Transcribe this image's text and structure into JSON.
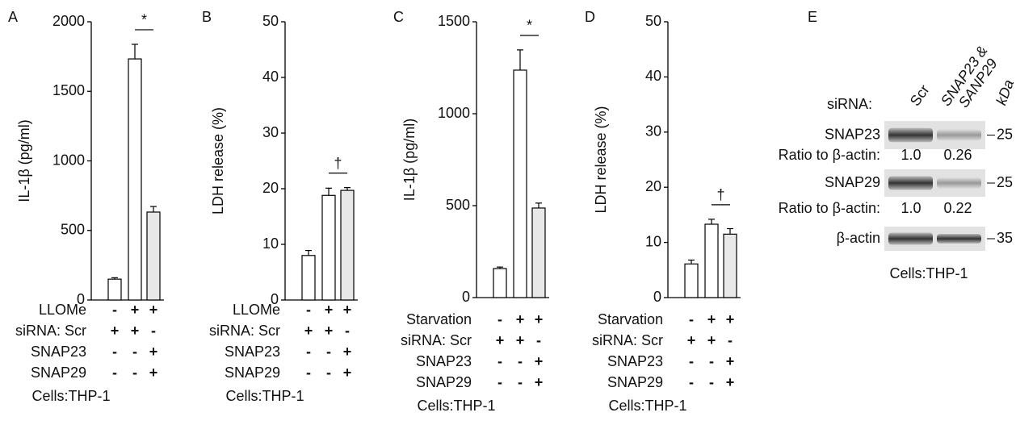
{
  "chart_data": [
    {
      "type": "bar",
      "panel": "A",
      "ylabel": "IL-1β  (pg/ml)",
      "ylim": [
        0,
        2000
      ],
      "yticks": [
        0,
        500,
        1000,
        1500,
        2000
      ],
      "values": [
        150,
        1733,
        632
      ],
      "errors": [
        10,
        105,
        40
      ],
      "colors": [
        "#ffffff",
        "#ffffff",
        "#e8e8e8"
      ],
      "annotation": "*",
      "conditions": [
        {
          "label": "LLOMe",
          "marks": [
            "-",
            "+",
            "+"
          ]
        },
        {
          "label": "siRNA:  Scr",
          "marks": [
            "+",
            "+",
            "-"
          ]
        },
        {
          "label": "SNAP23",
          "marks": [
            "-",
            "-",
            "+"
          ]
        },
        {
          "label": "SNAP29",
          "marks": [
            "-",
            "-",
            "+"
          ]
        }
      ],
      "footer": "Cells:THP-1"
    },
    {
      "type": "bar",
      "panel": "B",
      "ylabel": "LDH release (%)",
      "ylim": [
        0,
        50
      ],
      "yticks": [
        0,
        10,
        20,
        30,
        40,
        50
      ],
      "values": [
        8.0,
        18.8,
        19.7
      ],
      "errors": [
        0.9,
        1.3,
        0.5
      ],
      "colors": [
        "#ffffff",
        "#ffffff",
        "#e8e8e8"
      ],
      "annotation": "†",
      "conditions": [
        {
          "label": "LLOMe",
          "marks": [
            "-",
            "+",
            "+"
          ]
        },
        {
          "label": "siRNA:  Scr",
          "marks": [
            "+",
            "+",
            "-"
          ]
        },
        {
          "label": "SNAP23",
          "marks": [
            "-",
            "-",
            "+"
          ]
        },
        {
          "label": "SNAP29",
          "marks": [
            "-",
            "-",
            "+"
          ]
        }
      ],
      "footer": "Cells:THP-1"
    },
    {
      "type": "bar",
      "panel": "C",
      "ylabel": "IL-1β  (pg/ml)",
      "ylim": [
        0,
        1500
      ],
      "yticks": [
        0,
        500,
        1000,
        1500
      ],
      "values": [
        158,
        1237,
        487
      ],
      "errors": [
        8,
        110,
        27
      ],
      "colors": [
        "#ffffff",
        "#ffffff",
        "#e8e8e8"
      ],
      "annotation": "*",
      "conditions": [
        {
          "label": "Starvation",
          "marks": [
            "-",
            "+",
            "+"
          ]
        },
        {
          "label": "siRNA:  Scr",
          "marks": [
            "+",
            "+",
            "-"
          ]
        },
        {
          "label": "SNAP23",
          "marks": [
            "-",
            "-",
            "+"
          ]
        },
        {
          "label": "SNAP29",
          "marks": [
            "-",
            "-",
            "+"
          ]
        }
      ],
      "footer": "Cells:THP-1"
    },
    {
      "type": "bar",
      "panel": "D",
      "ylabel": "LDH release (%)",
      "ylim": [
        0,
        50
      ],
      "yticks": [
        0,
        10,
        20,
        30,
        40,
        50
      ],
      "values": [
        6.1,
        13.3,
        11.5
      ],
      "errors": [
        0.7,
        0.9,
        1.0
      ],
      "colors": [
        "#ffffff",
        "#ffffff",
        "#e8e8e8"
      ],
      "annotation": "†",
      "conditions": [
        {
          "label": "Starvation",
          "marks": [
            "-",
            "+",
            "+"
          ]
        },
        {
          "label": "siRNA:  Scr",
          "marks": [
            "+",
            "+",
            "-"
          ]
        },
        {
          "label": "SNAP23",
          "marks": [
            "-",
            "-",
            "+"
          ]
        },
        {
          "label": "SNAP29",
          "marks": [
            "-",
            "-",
            "+"
          ]
        }
      ],
      "footer": "Cells:THP-1"
    }
  ],
  "blot": {
    "panel": "E",
    "row_header": "siRNA:",
    "lanes": [
      "Scr",
      "SNAP23 &",
      "SANP29"
    ],
    "unit": "kDa",
    "rows": [
      {
        "label": "SNAP23",
        "marker": 25,
        "ratio_label": "Ratio to β-actin:",
        "ratios": [
          "1.0",
          "0.26"
        ]
      },
      {
        "label": "SNAP29",
        "marker": 25,
        "ratio_label": "Ratio to β-actin:",
        "ratios": [
          "1.0",
          "0.22"
        ]
      },
      {
        "label": "β-actin",
        "marker": 35
      }
    ],
    "footer": "Cells:THP-1"
  }
}
